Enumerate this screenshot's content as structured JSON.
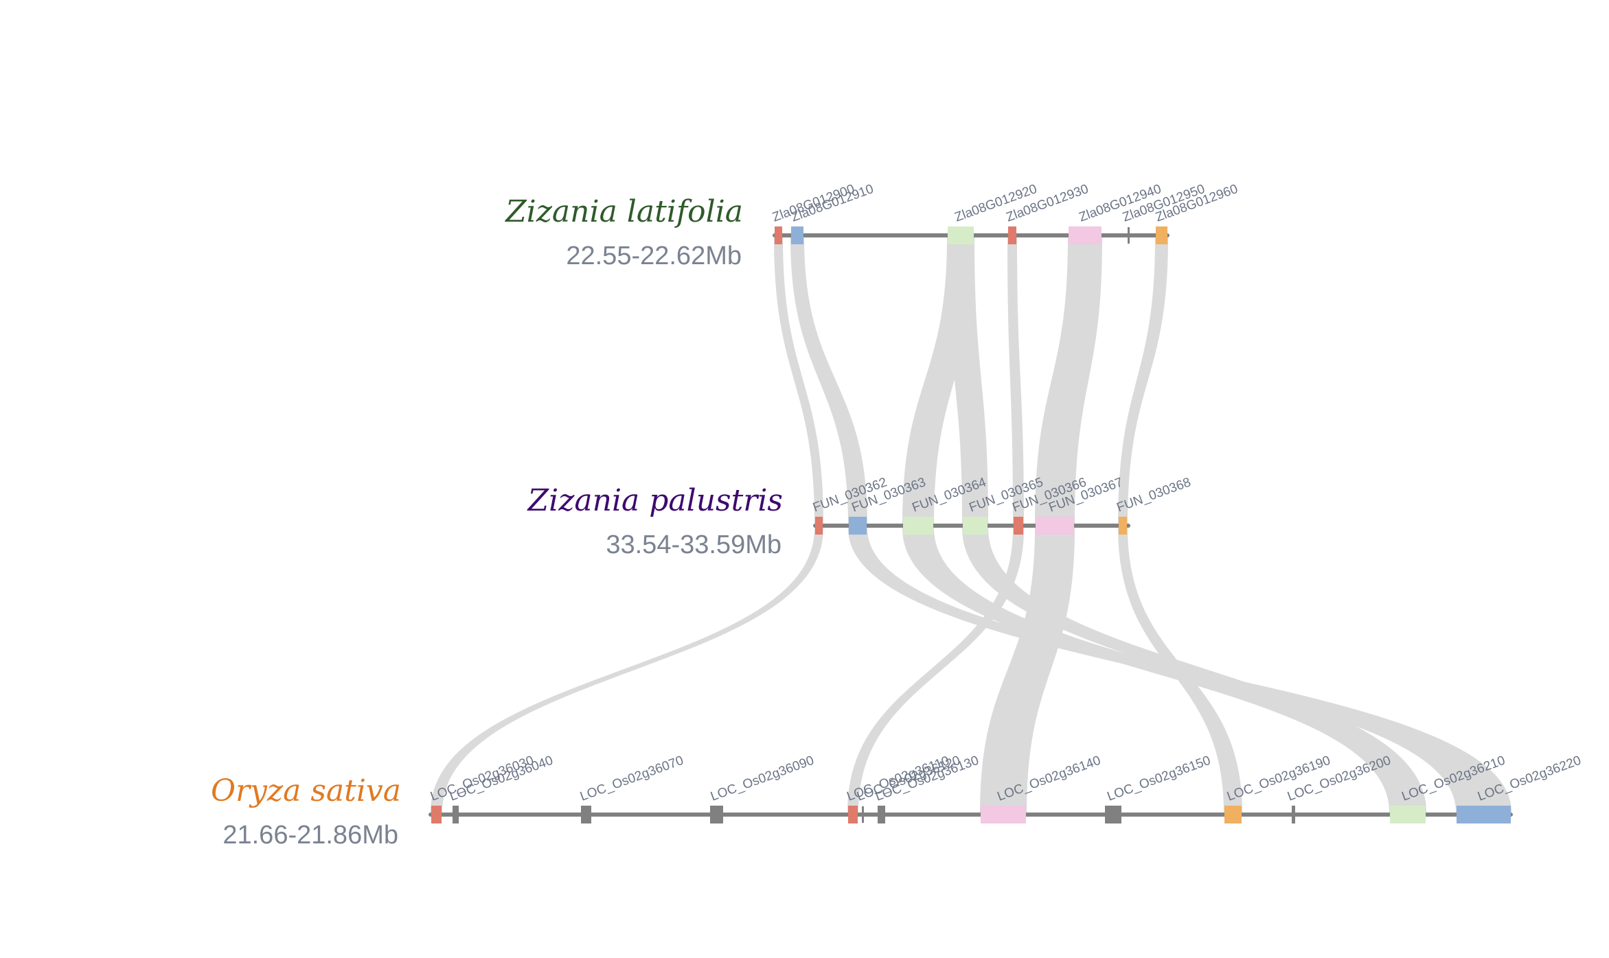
{
  "tracks": [
    {
      "id": "zl",
      "species": "Zizania latifolia",
      "region": "22.55-22.62Mb",
      "color": "#2f5a2a",
      "genes": [
        {
          "name": "Zla08G012900",
          "color": "#e07a6a"
        },
        {
          "name": "Zla08G012910",
          "color": "#8eb0d8"
        },
        {
          "name": "Zla08G012920",
          "color": "#d6ecc8"
        },
        {
          "name": "Zla08G012930",
          "color": "#e07a6a"
        },
        {
          "name": "Zla08G012940",
          "color": "#f2c8e2"
        },
        {
          "name": "Zla08G012950",
          "color": "#808080"
        },
        {
          "name": "Zla08G012960",
          "color": "#f0b060"
        }
      ]
    },
    {
      "id": "zp",
      "species": "Zizania palustris",
      "region": "33.54-33.59Mb",
      "color": "#3d0a6e",
      "genes": [
        {
          "name": "FUN_030362",
          "color": "#e07a6a"
        },
        {
          "name": "FUN_030363",
          "color": "#8eb0d8"
        },
        {
          "name": "FUN_030364",
          "color": "#d6ecc8"
        },
        {
          "name": "FUN_030365",
          "color": "#d6ecc8"
        },
        {
          "name": "FUN_030366",
          "color": "#e07a6a"
        },
        {
          "name": "FUN_030367",
          "color": "#f2c8e2"
        },
        {
          "name": "FUN_030368",
          "color": "#f0b060"
        }
      ]
    },
    {
      "id": "os",
      "species": "Oryza sativa",
      "region": "21.66-21.86Mb",
      "color": "#e07a22",
      "genes": [
        {
          "name": "LOC_Os02g36030",
          "color": "#e07a6a"
        },
        {
          "name": "LOC_Os02g36040",
          "color": "#808080"
        },
        {
          "name": "LOC_Os02g36070",
          "color": "#808080"
        },
        {
          "name": "LOC_Os02g36090",
          "color": "#808080"
        },
        {
          "name": "LOC_Os02g36110",
          "color": "#e07a6a"
        },
        {
          "name": "LOC_Os02g36120",
          "color": "#808080"
        },
        {
          "name": "LOC_Os02g36130",
          "color": "#808080"
        },
        {
          "name": "LOC_Os02g36140",
          "color": "#f2c8e2"
        },
        {
          "name": "LOC_Os02g36150",
          "color": "#808080"
        },
        {
          "name": "LOC_Os02g36190",
          "color": "#f0b060"
        },
        {
          "name": "LOC_Os02g36200",
          "color": "#808080"
        },
        {
          "name": "LOC_Os02g36210",
          "color": "#d6ecc8"
        },
        {
          "name": "LOC_Os02g36220",
          "color": "#8eb0d8"
        }
      ]
    }
  ],
  "links": [
    [
      "Zla08G012900",
      "FUN_030362"
    ],
    [
      "Zla08G012910",
      "FUN_030363"
    ],
    [
      "Zla08G012920",
      "FUN_030364"
    ],
    [
      "Zla08G012920",
      "FUN_030365"
    ],
    [
      "Zla08G012930",
      "FUN_030366"
    ],
    [
      "Zla08G012940",
      "FUN_030367"
    ],
    [
      "Zla08G012960",
      "FUN_030368"
    ],
    [
      "FUN_030362",
      "LOC_Os02g36030"
    ],
    [
      "FUN_030363",
      "LOC_Os02g36220"
    ],
    [
      "FUN_030364",
      "LOC_Os02g36210"
    ],
    [
      "FUN_030365",
      "LOC_Os02g36210"
    ],
    [
      "FUN_030366",
      "LOC_Os02g36110"
    ],
    [
      "FUN_030367",
      "LOC_Os02g36140"
    ],
    [
      "FUN_030368",
      "LOC_Os02g36190"
    ]
  ],
  "colors": {
    "backbone": "#808080",
    "link": "#dadada",
    "gene_label": "#6b7486",
    "region_label": "#7a8291"
  }
}
